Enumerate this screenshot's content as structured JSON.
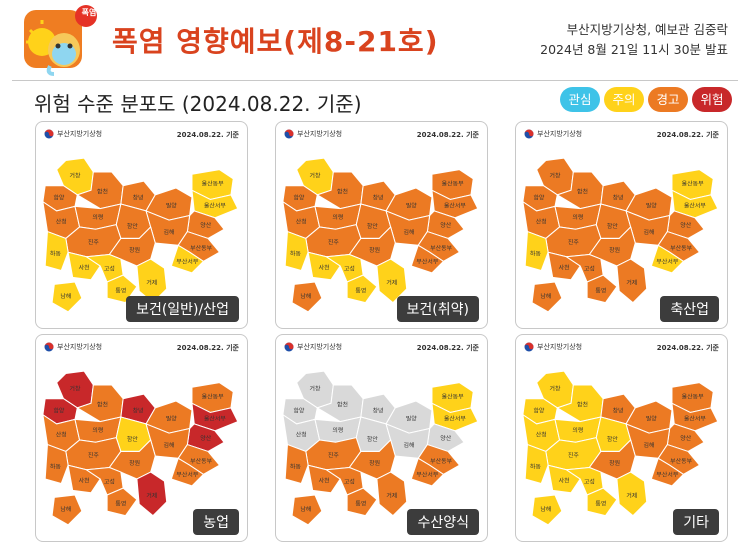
{
  "header": {
    "badge": "폭염",
    "title": "폭염 영향예보(제8-21호)",
    "issuer_line1": "부산지방기상청, 예보관 김중락",
    "issuer_line2": "2024년 8월 21일 11시 30분 발표"
  },
  "subtitle": "위험 수준 분포도 (2024.08.22. 기준)",
  "legend": [
    {
      "label": "관심",
      "color": "#3ec3e8"
    },
    {
      "label": "주의",
      "color": "#ffd21a"
    },
    {
      "label": "경고",
      "color": "#ec7a23"
    },
    {
      "label": "위험",
      "color": "#c8282a"
    }
  ],
  "colors": {
    "low": "#d9d9d9",
    "caution": "#ffd21a",
    "warning": "#ec7a23",
    "danger": "#c8282a"
  },
  "region_labels": [
    "거창",
    "합천",
    "함양",
    "창녕",
    "밀양",
    "울산동부",
    "울산서부",
    "산청",
    "의령",
    "함안",
    "양산",
    "진주",
    "창원",
    "김해",
    "부산서부",
    "부산동부",
    "하동",
    "사천",
    "고성",
    "통영",
    "남해",
    "거제"
  ],
  "panels": [
    {
      "label": "보건(일반)/산업",
      "agency": "부산지방기상청",
      "date": "2024.08.22. 기준",
      "levels": {
        "거창": "caution",
        "합천": "warning",
        "함양": "warning",
        "창녕": "warning",
        "밀양": "warning",
        "울산동부": "caution",
        "울산서부": "caution",
        "산청": "warning",
        "의령": "warning",
        "함안": "warning",
        "양산": "warning",
        "진주": "warning",
        "창원": "warning",
        "김해": "warning",
        "부산서부": "caution",
        "부산동부": "warning",
        "하동": "caution",
        "사천": "caution",
        "고성": "caution",
        "통영": "caution",
        "남해": "caution",
        "거제": "caution"
      }
    },
    {
      "label": "보건(취약)",
      "agency": "부산지방기상청",
      "date": "2024.08.22. 기준",
      "levels": {
        "거창": "caution",
        "합천": "warning",
        "함양": "warning",
        "창녕": "warning",
        "밀양": "warning",
        "울산동부": "warning",
        "울산서부": "warning",
        "산청": "warning",
        "의령": "warning",
        "함안": "warning",
        "양산": "warning",
        "진주": "warning",
        "창원": "warning",
        "김해": "warning",
        "부산서부": "warning",
        "부산동부": "warning",
        "하동": "caution",
        "사천": "caution",
        "고성": "caution",
        "통영": "caution",
        "남해": "warning",
        "거제": "caution"
      }
    },
    {
      "label": "축산업",
      "agency": "부산지방기상청",
      "date": "2024.08.22. 기준",
      "levels": {
        "거창": "warning",
        "합천": "warning",
        "함양": "warning",
        "창녕": "warning",
        "밀양": "warning",
        "울산동부": "caution",
        "울산서부": "caution",
        "산청": "warning",
        "의령": "warning",
        "함안": "warning",
        "양산": "warning",
        "진주": "warning",
        "창원": "warning",
        "김해": "warning",
        "부산서부": "caution",
        "부산동부": "warning",
        "하동": "caution",
        "사천": "warning",
        "고성": "warning",
        "통영": "warning",
        "남해": "warning",
        "거제": "warning"
      }
    },
    {
      "label": "농업",
      "agency": "부산지방기상청",
      "date": "2024.08.22. 기준",
      "levels": {
        "거창": "danger",
        "합천": "warning",
        "함양": "danger",
        "창녕": "danger",
        "밀양": "warning",
        "울산동부": "warning",
        "울산서부": "danger",
        "산청": "warning",
        "의령": "warning",
        "함안": "caution",
        "양산": "danger",
        "진주": "warning",
        "창원": "warning",
        "김해": "warning",
        "부산서부": "warning",
        "부산동부": "warning",
        "하동": "warning",
        "사천": "warning",
        "고성": "warning",
        "통영": "warning",
        "남해": "warning",
        "거제": "danger"
      }
    },
    {
      "label": "수산양식",
      "agency": "부산지방기상청",
      "date": "2024.08.22. 기준",
      "levels": {
        "거창": "low",
        "합천": "low",
        "함양": "low",
        "창녕": "low",
        "밀양": "low",
        "울산동부": "caution",
        "울산서부": "caution",
        "산청": "low",
        "의령": "low",
        "함안": "low",
        "양산": "low",
        "진주": "warning",
        "창원": "warning",
        "김해": "low",
        "부산서부": "warning",
        "부산동부": "warning",
        "하동": "warning",
        "사천": "warning",
        "고성": "warning",
        "통영": "warning",
        "남해": "warning",
        "거제": "warning"
      }
    },
    {
      "label": "기타",
      "agency": "부산지방기상청",
      "date": "2024.08.22. 기준",
      "levels": {
        "거창": "caution",
        "합천": "caution",
        "함양": "caution",
        "창녕": "warning",
        "밀양": "warning",
        "울산동부": "warning",
        "울산서부": "warning",
        "산청": "caution",
        "의령": "caution",
        "함안": "caution",
        "양산": "warning",
        "진주": "caution",
        "창원": "warning",
        "김해": "warning",
        "부산서부": "warning",
        "부산동부": "warning",
        "하동": "caution",
        "사천": "caution",
        "고성": "caution",
        "통영": "caution",
        "남해": "caution",
        "거제": "caution"
      }
    }
  ]
}
